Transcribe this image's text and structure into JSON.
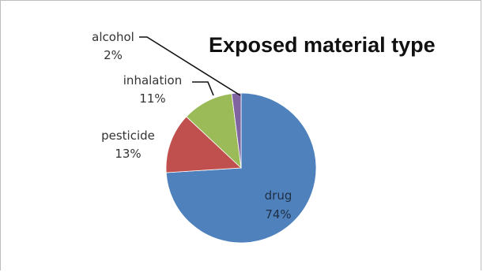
{
  "chart_data": {
    "type": "pie",
    "title": "Exposed material type",
    "slices": [
      {
        "name": "drug",
        "label": "74%",
        "value": 74,
        "color": "#4f81bd"
      },
      {
        "name": "pesticide",
        "label": "13%",
        "value": 13,
        "color": "#c0504d"
      },
      {
        "name": "inhalation",
        "label": "11%",
        "value": 11,
        "color": "#9bbb59"
      },
      {
        "name": "alcohol",
        "label": "2%",
        "value": 2,
        "color": "#8064a2"
      }
    ],
    "legend": "none"
  }
}
